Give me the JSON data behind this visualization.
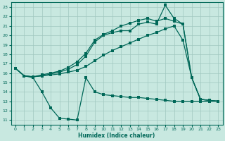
{
  "background_color": "#c8e8e0",
  "grid_color": "#a0c8c0",
  "line_color": "#006858",
  "xlabel": "Humidex (Indice chaleur)",
  "xlim": [
    -0.5,
    23.5
  ],
  "ylim": [
    10.5,
    23.5
  ],
  "yticks": [
    11,
    12,
    13,
    14,
    15,
    16,
    17,
    18,
    19,
    20,
    21,
    22,
    23
  ],
  "xticks": [
    0,
    1,
    2,
    3,
    4,
    5,
    6,
    7,
    8,
    9,
    10,
    11,
    12,
    13,
    14,
    15,
    16,
    17,
    18,
    19,
    20,
    21,
    22,
    23
  ],
  "curve_bottom_x": [
    0,
    1,
    2,
    3,
    4,
    5,
    6,
    7,
    8,
    9,
    10,
    11,
    12,
    13,
    14,
    15,
    16,
    17,
    18,
    19,
    20,
    21,
    22,
    23
  ],
  "curve_bottom_y": [
    16.5,
    15.7,
    15.5,
    14.0,
    12.3,
    11.2,
    11.1,
    11.0,
    15.5,
    14.0,
    13.7,
    13.6,
    13.5,
    13.4,
    13.4,
    13.3,
    13.2,
    13.1,
    13.0,
    13.0,
    13.0,
    13.0,
    13.0,
    13.0
  ],
  "curve_low_x": [
    0,
    1,
    2,
    3,
    4,
    5,
    6,
    7,
    8,
    9,
    10,
    11,
    12,
    13,
    14,
    15,
    16,
    17,
    18,
    19,
    20,
    21,
    22,
    23
  ],
  "curve_low_y": [
    16.5,
    15.7,
    15.6,
    15.7,
    15.8,
    15.9,
    16.1,
    16.3,
    16.7,
    17.3,
    17.9,
    18.4,
    18.8,
    19.2,
    19.6,
    20.0,
    20.3,
    20.7,
    21.0,
    19.5,
    15.5,
    13.2,
    13.1,
    13.0
  ],
  "curve_hi1_x": [
    0,
    1,
    2,
    3,
    4,
    5,
    6,
    7,
    8,
    9,
    10,
    11,
    12,
    13,
    14,
    15,
    16,
    17,
    18,
    19,
    20,
    21,
    22,
    23
  ],
  "curve_hi1_y": [
    16.5,
    15.7,
    15.6,
    15.7,
    15.9,
    16.1,
    16.4,
    16.9,
    17.8,
    19.3,
    20.0,
    20.3,
    20.5,
    20.5,
    21.2,
    21.4,
    21.2,
    23.2,
    21.8,
    21.2,
    15.5,
    13.2,
    13.1,
    13.0
  ],
  "curve_hi2_x": [
    0,
    1,
    2,
    3,
    4,
    5,
    6,
    7,
    8,
    9,
    10,
    11,
    12,
    13,
    14,
    15,
    16,
    17,
    18,
    19,
    20,
    21,
    22,
    23
  ],
  "curve_hi2_y": [
    16.5,
    15.7,
    15.6,
    15.8,
    16.0,
    16.2,
    16.6,
    17.2,
    18.1,
    19.5,
    20.1,
    20.5,
    21.0,
    21.3,
    21.6,
    21.8,
    21.5,
    21.8,
    21.5,
    21.2,
    15.5,
    13.2,
    13.1,
    13.0
  ]
}
